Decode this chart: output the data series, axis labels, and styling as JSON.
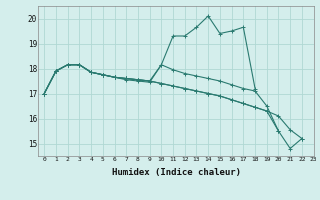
{
  "title": "",
  "xlabel": "Humidex (Indice chaleur)",
  "ylabel": "",
  "xlim": [
    -0.5,
    23
  ],
  "ylim": [
    14.5,
    20.5
  ],
  "yticks": [
    15,
    16,
    17,
    18,
    19,
    20
  ],
  "xticks": [
    0,
    1,
    2,
    3,
    4,
    5,
    6,
    7,
    8,
    9,
    10,
    11,
    12,
    13,
    14,
    15,
    16,
    17,
    18,
    19,
    20,
    21,
    22,
    23
  ],
  "bg_color": "#d4eeec",
  "line_color": "#2a7a70",
  "grid_color": "#b0d8d4",
  "lines": [
    [
      17.0,
      17.9,
      18.15,
      18.15,
      17.85,
      17.75,
      17.65,
      17.55,
      17.5,
      17.45,
      18.15,
      19.3,
      19.3,
      19.65,
      20.1,
      19.4,
      19.5,
      19.65,
      17.2,
      null,
      null,
      null,
      null,
      null
    ],
    [
      17.0,
      17.9,
      18.15,
      18.15,
      17.85,
      17.75,
      17.65,
      17.6,
      17.55,
      17.5,
      18.15,
      17.95,
      17.8,
      17.7,
      17.6,
      17.5,
      17.35,
      17.2,
      17.1,
      16.5,
      15.5,
      null,
      null,
      null
    ],
    [
      17.0,
      17.9,
      18.15,
      18.15,
      17.85,
      17.75,
      17.65,
      17.6,
      17.55,
      17.5,
      17.4,
      17.3,
      17.2,
      17.1,
      17.0,
      16.9,
      16.75,
      16.6,
      16.45,
      16.3,
      15.5,
      14.8,
      15.2,
      null
    ],
    [
      17.0,
      17.9,
      18.15,
      18.15,
      17.85,
      17.75,
      17.65,
      17.6,
      17.55,
      17.5,
      17.4,
      17.3,
      17.2,
      17.1,
      17.0,
      16.9,
      16.75,
      16.6,
      16.45,
      16.3,
      16.1,
      15.55,
      15.2,
      null
    ]
  ]
}
